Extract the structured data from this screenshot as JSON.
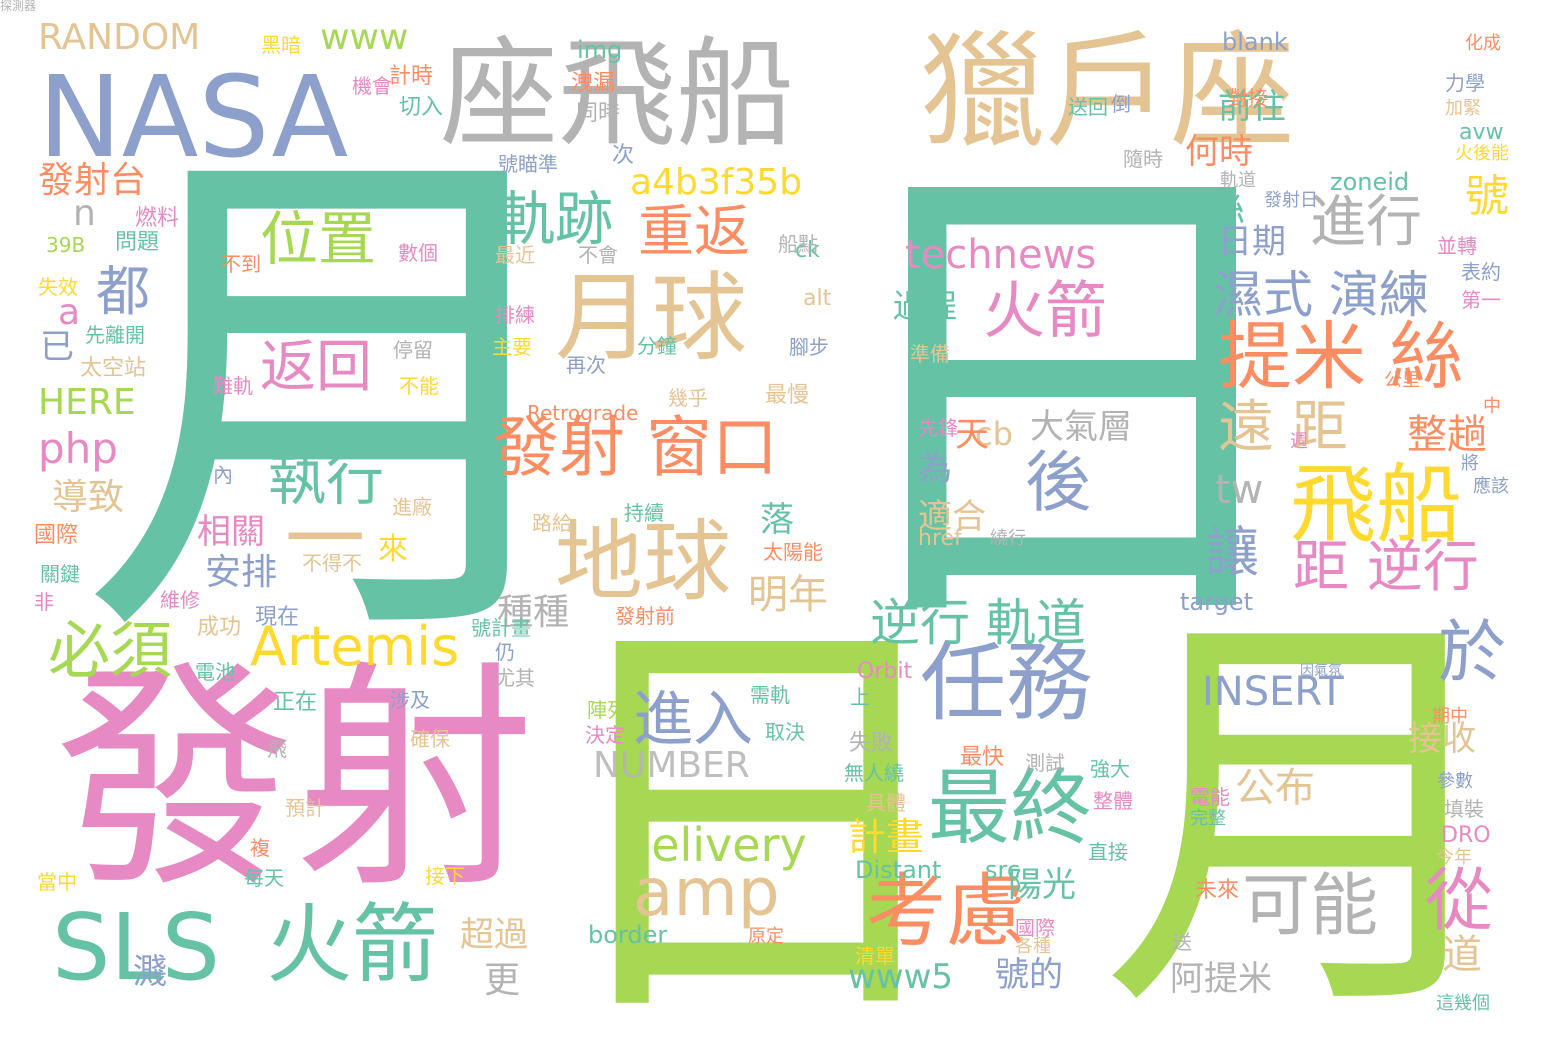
{
  "palette": {
    "teal": "#66c2a5",
    "orange": "#fc8d62",
    "blue": "#8da0cb",
    "pink": "#e78ac3",
    "green": "#a6d854",
    "yellow": "#ffd92f",
    "tan": "#e5c494",
    "gray": "#b3b3b3"
  },
  "words": [
    {
      "text": "月",
      "color": "teal"
    },
    {
      "text": "日",
      "color": "teal"
    },
    {
      "text": "發射",
      "color": "pink"
    },
    {
      "text": "日",
      "color": "green"
    },
    {
      "text": "月",
      "color": "green"
    },
    {
      "text": "獵戶座",
      "color": "tan"
    },
    {
      "text": "座飛船",
      "color": "gray"
    },
    {
      "text": "NASA",
      "color": "blue"
    },
    {
      "text": "月球",
      "color": "tan"
    },
    {
      "text": "地球",
      "color": "tan"
    },
    {
      "text": "任務",
      "color": "blue"
    },
    {
      "text": "飛船",
      "color": "yellow"
    },
    {
      "text": "最終",
      "color": "teal"
    },
    {
      "text": "考慮",
      "color": "orange"
    },
    {
      "text": "SLS",
      "color": "teal"
    },
    {
      "text": "火箭",
      "color": "teal"
    },
    {
      "text": "發射 窗口",
      "color": "orange"
    },
    {
      "text": "提米 絲",
      "color": "orange"
    },
    {
      "text": "後",
      "color": "blue"
    },
    {
      "text": "火箭",
      "color": "pink"
    },
    {
      "text": "可能",
      "color": "gray"
    },
    {
      "text": "amp",
      "color": "tan"
    },
    {
      "text": "Artemis",
      "color": "yellow"
    },
    {
      "text": "進入",
      "color": "blue"
    },
    {
      "text": "軌跡",
      "color": "teal"
    },
    {
      "text": "位置",
      "color": "green"
    },
    {
      "text": "返回",
      "color": "pink"
    },
    {
      "text": "執行",
      "color": "teal"
    },
    {
      "text": "重返",
      "color": "orange"
    },
    {
      "text": "進行",
      "color": "gray"
    },
    {
      "text": "遠 距",
      "color": "tan"
    },
    {
      "text": "濕式 演練",
      "color": "blue"
    },
    {
      "text": "距 逆行",
      "color": "pink"
    },
    {
      "text": "逆行 軌道",
      "color": "teal"
    },
    {
      "text": "必須",
      "color": "green"
    },
    {
      "text": "都",
      "color": "blue"
    },
    {
      "text": "從",
      "color": "pink"
    },
    {
      "text": "於",
      "color": "blue"
    },
    {
      "text": "讓",
      "color": "blue"
    },
    {
      "text": "delivery",
      "color": "green"
    },
    {
      "text": "technews",
      "color": "pink"
    },
    {
      "text": "INSERT",
      "color": "blue"
    },
    {
      "text": "a4b3f35b",
      "color": "yellow"
    },
    {
      "text": "NUMBER",
      "color": "gray"
    },
    {
      "text": "RANDOM",
      "color": "tan"
    },
    {
      "text": "www",
      "color": "green"
    },
    {
      "text": "www5",
      "color": "teal"
    },
    {
      "text": "號的",
      "color": "blue"
    },
    {
      "text": "公布",
      "color": "tan"
    },
    {
      "text": "過程",
      "color": "teal"
    },
    {
      "text": "一",
      "color": "tan"
    },
    {
      "text": "來",
      "color": "yellow"
    },
    {
      "text": "安排",
      "color": "blue"
    },
    {
      "text": "明年",
      "color": "tan"
    },
    {
      "text": "導致",
      "color": "tan"
    },
    {
      "text": "HERE",
      "color": "green"
    },
    {
      "text": "php",
      "color": "pink"
    },
    {
      "text": "發射台",
      "color": "orange"
    },
    {
      "text": "已",
      "color": "blue"
    },
    {
      "text": "a",
      "color": "pink"
    },
    {
      "text": "n",
      "color": "gray"
    },
    {
      "text": "前往",
      "color": "teal"
    },
    {
      "text": "何時",
      "color": "orange"
    },
    {
      "text": "日期",
      "color": "blue"
    },
    {
      "text": "絲",
      "color": "teal"
    },
    {
      "text": "號",
      "color": "yellow"
    },
    {
      "text": "整趟",
      "color": "orange"
    },
    {
      "text": "tw",
      "color": "gray"
    },
    {
      "text": "接收",
      "color": "tan"
    },
    {
      "text": "道",
      "color": "tan"
    },
    {
      "text": "阿提米",
      "color": "gray"
    },
    {
      "text": "超過",
      "color": "tan"
    },
    {
      "text": "更",
      "color": "gray"
    },
    {
      "text": "濺",
      "color": "blue"
    },
    {
      "text": "陽光",
      "color": "teal"
    },
    {
      "text": "計畫",
      "color": "yellow"
    },
    {
      "text": "種種",
      "color": "gray"
    },
    {
      "text": "落",
      "color": "teal"
    },
    {
      "text": "相關",
      "color": "pink"
    },
    {
      "text": "大氣層",
      "color": "gray"
    },
    {
      "text": "cb",
      "color": "tan"
    },
    {
      "text": "天",
      "color": "orange"
    },
    {
      "text": "為",
      "color": "blue"
    },
    {
      "text": "適合",
      "color": "tan"
    },
    {
      "text": "zoneid",
      "color": "teal"
    },
    {
      "text": "blank",
      "color": "blue"
    },
    {
      "text": "target",
      "color": "blue"
    },
    {
      "text": "Retrograde",
      "color": "orange"
    },
    {
      "text": "Orbit",
      "color": "pink"
    },
    {
      "text": "Distant",
      "color": "teal"
    },
    {
      "text": "border",
      "color": "teal"
    },
    {
      "text": "img",
      "color": "teal"
    },
    {
      "text": "href",
      "color": "tan"
    },
    {
      "text": "src",
      "color": "teal"
    },
    {
      "text": "ck",
      "color": "teal"
    },
    {
      "text": "alt",
      "color": "tan"
    },
    {
      "text": "avw",
      "color": "teal"
    },
    {
      "text": "DRO",
      "color": "pink"
    },
    {
      "text": "39B",
      "color": "green"
    },
    {
      "text": "計時",
      "color": "orange"
    },
    {
      "text": "切入",
      "color": "teal"
    },
    {
      "text": "機會",
      "color": "pink"
    },
    {
      "text": "洩漏",
      "color": "orange"
    },
    {
      "text": "同時",
      "color": "gray"
    },
    {
      "text": "次",
      "color": "blue"
    },
    {
      "text": "號瞄準",
      "color": "blue"
    },
    {
      "text": "黑暗",
      "color": "yellow"
    },
    {
      "text": "燃料",
      "color": "pink"
    },
    {
      "text": "問題",
      "color": "teal"
    },
    {
      "text": "不到",
      "color": "orange"
    },
    {
      "text": "數個",
      "color": "pink"
    },
    {
      "text": "失效",
      "color": "yellow"
    },
    {
      "text": "先離開",
      "color": "teal"
    },
    {
      "text": "太空站",
      "color": "tan"
    },
    {
      "text": "停留",
      "color": "gray"
    },
    {
      "text": "難軌",
      "color": "pink"
    },
    {
      "text": "不能",
      "color": "yellow"
    },
    {
      "text": "內",
      "color": "blue"
    },
    {
      "text": "進廠",
      "color": "tan"
    },
    {
      "text": "路給",
      "color": "tan"
    },
    {
      "text": "持續",
      "color": "teal"
    },
    {
      "text": "太陽能",
      "color": "orange"
    },
    {
      "text": "不得不",
      "color": "tan"
    },
    {
      "text": "國際",
      "color": "orange"
    },
    {
      "text": "關鍵",
      "color": "teal"
    },
    {
      "text": "非",
      "color": "pink"
    },
    {
      "text": "維修",
      "color": "pink"
    },
    {
      "text": "成功",
      "color": "tan"
    },
    {
      "text": "現在",
      "color": "blue"
    },
    {
      "text": "發射前",
      "color": "orange"
    },
    {
      "text": "號計畫",
      "color": "teal"
    },
    {
      "text": "仍",
      "color": "blue"
    },
    {
      "text": "尤其",
      "color": "gray"
    },
    {
      "text": "電池",
      "color": "teal"
    },
    {
      "text": "涉及",
      "color": "blue"
    },
    {
      "text": "正在",
      "color": "teal"
    },
    {
      "text": "飛",
      "color": "gray"
    },
    {
      "text": "確保",
      "color": "tan"
    },
    {
      "text": "預計",
      "color": "tan"
    },
    {
      "text": "複",
      "color": "orange"
    },
    {
      "text": "每天",
      "color": "teal"
    },
    {
      "text": "當中",
      "color": "yellow"
    },
    {
      "text": "接下",
      "color": "yellow"
    },
    {
      "text": "最近",
      "color": "tan"
    },
    {
      "text": "不會",
      "color": "gray"
    },
    {
      "text": "排練",
      "color": "pink"
    },
    {
      "text": "主要",
      "color": "yellow"
    },
    {
      "text": "再次",
      "color": "blue"
    },
    {
      "text": "分鐘",
      "color": "teal"
    },
    {
      "text": "幾乎",
      "color": "tan"
    },
    {
      "text": "最慢",
      "color": "tan"
    },
    {
      "text": "腳步",
      "color": "blue"
    },
    {
      "text": "船點",
      "color": "gray"
    },
    {
      "text": "準備",
      "color": "tan"
    },
    {
      "text": "先鋒",
      "color": "pink"
    },
    {
      "text": "繞行",
      "color": "gray"
    },
    {
      "text": "陣列",
      "color": "green"
    },
    {
      "text": "決定",
      "color": "pink"
    },
    {
      "text": "需軌",
      "color": "teal"
    },
    {
      "text": "取決",
      "color": "teal"
    },
    {
      "text": "上",
      "color": "teal"
    },
    {
      "text": "失敗",
      "color": "gray"
    },
    {
      "text": "無人繞",
      "color": "teal"
    },
    {
      "text": "具體",
      "color": "tan"
    },
    {
      "text": "最快",
      "color": "orange"
    },
    {
      "text": "測試",
      "color": "gray"
    },
    {
      "text": "強大",
      "color": "teal"
    },
    {
      "text": "整體",
      "color": "pink"
    },
    {
      "text": "直接",
      "color": "teal"
    },
    {
      "text": "國際",
      "color": "pink"
    },
    {
      "text": "各種",
      "color": "tan"
    },
    {
      "text": "清單",
      "color": "yellow"
    },
    {
      "text": "原定",
      "color": "orange"
    },
    {
      "text": "電能",
      "color": "pink"
    },
    {
      "text": "完整",
      "color": "teal"
    },
    {
      "text": "未來",
      "color": "orange"
    },
    {
      "text": "送",
      "color": "gray"
    },
    {
      "text": "對接",
      "color": "orange"
    },
    {
      "text": "送回",
      "color": "teal"
    },
    {
      "text": "倒",
      "color": "blue"
    },
    {
      "text": "隨時",
      "color": "gray"
    },
    {
      "text": "軌道",
      "color": "gray"
    },
    {
      "text": "發射日",
      "color": "blue"
    },
    {
      "text": "並轉",
      "color": "pink"
    },
    {
      "text": "表約",
      "color": "blue"
    },
    {
      "text": "第一",
      "color": "pink"
    },
    {
      "text": "公里",
      "color": "orange"
    },
    {
      "text": "週",
      "color": "pink"
    },
    {
      "text": "中",
      "color": "orange"
    },
    {
      "text": "將",
      "color": "blue"
    },
    {
      "text": "應該",
      "color": "blue"
    },
    {
      "text": "化成",
      "color": "orange"
    },
    {
      "text": "力學",
      "color": "blue"
    },
    {
      "text": "加緊",
      "color": "tan"
    },
    {
      "text": "火後能",
      "color": "yellow"
    },
    {
      "text": "期中",
      "color": "orange"
    },
    {
      "text": "參數",
      "color": "blue"
    },
    {
      "text": "填裝",
      "color": "gray"
    },
    {
      "text": "今年",
      "color": "tan"
    },
    {
      "text": "這幾個",
      "color": "teal"
    },
    {
      "text": "因氣氛",
      "color": "blue"
    },
    {
      "text": "探測器",
      "color": "gray"
    }
  ]
}
